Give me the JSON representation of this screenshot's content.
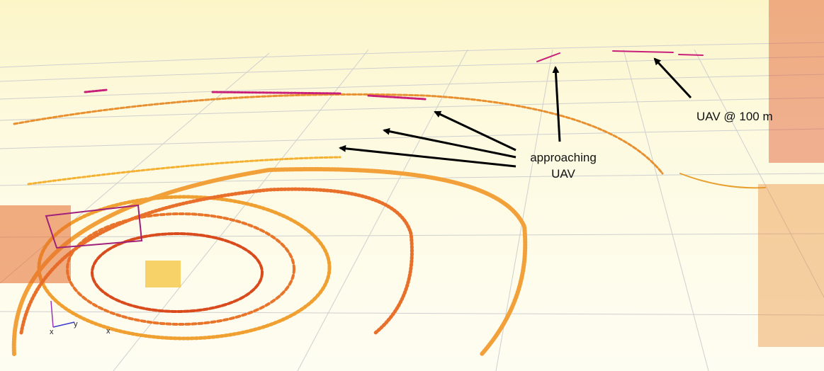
{
  "annotations": {
    "far_uav": "UAV @ 100 m",
    "approaching": [
      "approaching",
      "UAV"
    ]
  },
  "frame_labels": [
    "x",
    "y",
    "x"
  ]
}
